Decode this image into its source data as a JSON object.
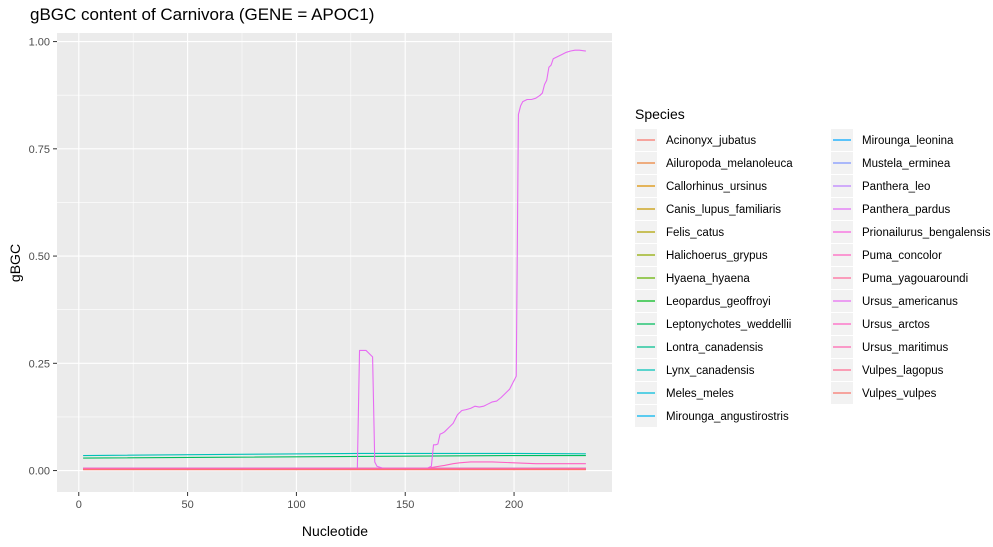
{
  "chart_data": {
    "type": "line",
    "title": "gBGC content of Carnivora (GENE = APOC1)",
    "xlabel": "Nucleotide",
    "ylabel": "gBGC",
    "xlim": [
      -10,
      245
    ],
    "ylim": [
      -0.05,
      1.02
    ],
    "x_ticks": [
      0,
      50,
      100,
      150,
      200
    ],
    "x_tick_labels": [
      "0",
      "50",
      "100",
      "150",
      "200"
    ],
    "y_ticks": [
      0,
      0.25,
      0.5,
      0.75,
      1.0
    ],
    "y_tick_labels": [
      "0.00",
      "0.25",
      "0.50",
      "0.75",
      "1.00"
    ],
    "grid": true,
    "legend_title": "Species",
    "legend_position": "right",
    "series": [
      {
        "name": "Acinonyx_jubatus",
        "color": "#F8766D",
        "x": [
          2,
          233
        ],
        "y": [
          0.005,
          0.005
        ]
      },
      {
        "name": "Ailuropoda_melanoleuca",
        "color": "#EC8239",
        "x": [
          2,
          233
        ],
        "y": [
          0.004,
          0.004
        ]
      },
      {
        "name": "Callorhinus_ursinus",
        "color": "#DB8E00",
        "x": [
          2,
          233
        ],
        "y": [
          0.003,
          0.003
        ]
      },
      {
        "name": "Canis_lupus_familiaris",
        "color": "#C79800",
        "x": [
          2,
          233
        ],
        "y": [
          0.004,
          0.004
        ]
      },
      {
        "name": "Felis_catus",
        "color": "#AEA200",
        "x": [
          2,
          233
        ],
        "y": [
          0.005,
          0.005
        ]
      },
      {
        "name": "Halichoerus_grypus",
        "color": "#8FAA00",
        "x": [
          2,
          233
        ],
        "y": [
          0.003,
          0.003
        ]
      },
      {
        "name": "Hyaena_hyaena",
        "color": "#64B200",
        "x": [
          2,
          233
        ],
        "y": [
          0.004,
          0.004
        ]
      },
      {
        "name": "Leopardus_geoffroyi",
        "color": "#00B81B",
        "x": [
          2,
          233
        ],
        "y": [
          0.005,
          0.005
        ]
      },
      {
        "name": "Leptonychotes_weddellii",
        "color": "#00BD5C",
        "x": [
          2,
          200,
          233
        ],
        "y": [
          0.029,
          0.035,
          0.035
        ]
      },
      {
        "name": "Lontra_canadensis",
        "color": "#00C08E",
        "x": [
          2,
          233
        ],
        "y": [
          0.003,
          0.003
        ]
      },
      {
        "name": "Lynx_canadensis",
        "color": "#00C1B7",
        "x": [
          2,
          130,
          200,
          233
        ],
        "y": [
          0.035,
          0.04,
          0.04,
          0.039
        ]
      },
      {
        "name": "Meles_meles",
        "color": "#00BDDC",
        "x": [
          2,
          233
        ],
        "y": [
          0.004,
          0.004
        ]
      },
      {
        "name": "Mirounga_angustirostris",
        "color": "#00B4EF",
        "x": [
          2,
          233
        ],
        "y": [
          0.003,
          0.003
        ]
      },
      {
        "name": "Mirounga_leonina",
        "color": "#00A7FF",
        "x": [
          2,
          233
        ],
        "y": [
          0.003,
          0.003
        ]
      },
      {
        "name": "Mustela_erminea",
        "color": "#7F96FF",
        "x": [
          2,
          233
        ],
        "y": [
          0.004,
          0.004
        ]
      },
      {
        "name": "Panthera_leo",
        "color": "#BC81FF",
        "x": [
          2,
          233
        ],
        "y": [
          0.005,
          0.005
        ]
      },
      {
        "name": "Panthera_pardus",
        "color": "#E26EF7",
        "x": [
          2,
          233
        ],
        "y": [
          0.005,
          0.005
        ]
      },
      {
        "name": "Prionailurus_bengalensis",
        "color": "#F863DF",
        "x": [
          2,
          233
        ],
        "y": [
          0.005,
          0.005
        ]
      },
      {
        "name": "Puma_concolor",
        "color": "#FF62BF",
        "x": [
          2,
          233
        ],
        "y": [
          0.005,
          0.005
        ]
      },
      {
        "name": "Puma_yagouaroundi",
        "color": "#FF6A9A",
        "x": [
          2,
          233
        ],
        "y": [
          0.004,
          0.004
        ]
      },
      {
        "name": "Ursus_americanus",
        "color": "#E76BF3",
        "x": [
          2,
          128,
          129,
          130,
          132,
          134,
          135,
          136,
          137,
          140,
          160,
          162,
          163,
          164,
          165,
          166,
          167,
          168,
          170,
          172,
          174,
          176,
          178,
          180,
          182,
          184,
          186,
          188,
          190,
          192,
          194,
          196,
          198,
          199,
          200,
          201,
          202,
          203,
          204,
          206,
          208,
          210,
          212,
          213,
          214,
          215,
          216,
          217,
          218,
          220,
          222,
          224,
          226,
          228,
          230,
          233
        ],
        "y": [
          0.005,
          0.005,
          0.28,
          0.28,
          0.28,
          0.27,
          0.265,
          0.02,
          0.01,
          0.005,
          0.005,
          0.01,
          0.06,
          0.06,
          0.062,
          0.085,
          0.087,
          0.09,
          0.1,
          0.11,
          0.13,
          0.14,
          0.142,
          0.145,
          0.15,
          0.148,
          0.15,
          0.155,
          0.16,
          0.162,
          0.17,
          0.18,
          0.19,
          0.2,
          0.21,
          0.22,
          0.83,
          0.85,
          0.86,
          0.865,
          0.865,
          0.868,
          0.875,
          0.88,
          0.9,
          0.91,
          0.94,
          0.945,
          0.96,
          0.965,
          0.97,
          0.975,
          0.978,
          0.98,
          0.98,
          0.978
        ]
      },
      {
        "name": "Ursus_arctos",
        "color": "#FF61C3",
        "x": [
          2,
          160,
          163,
          168,
          172,
          175,
          180,
          190,
          200,
          210,
          220,
          233
        ],
        "y": [
          0.005,
          0.005,
          0.008,
          0.012,
          0.016,
          0.018,
          0.02,
          0.02,
          0.018,
          0.016,
          0.016,
          0.016
        ]
      },
      {
        "name": "Ursus_maritimus",
        "color": "#FF64B0",
        "x": [
          2,
          233
        ],
        "y": [
          0.004,
          0.004
        ]
      },
      {
        "name": "Vulpes_lagopus",
        "color": "#FF6C91",
        "x": [
          2,
          233
        ],
        "y": [
          0.003,
          0.003
        ]
      },
      {
        "name": "Vulpes_vulpes",
        "color": "#F8766D",
        "x": [
          2,
          233
        ],
        "y": [
          0.002,
          0.002
        ]
      }
    ]
  }
}
